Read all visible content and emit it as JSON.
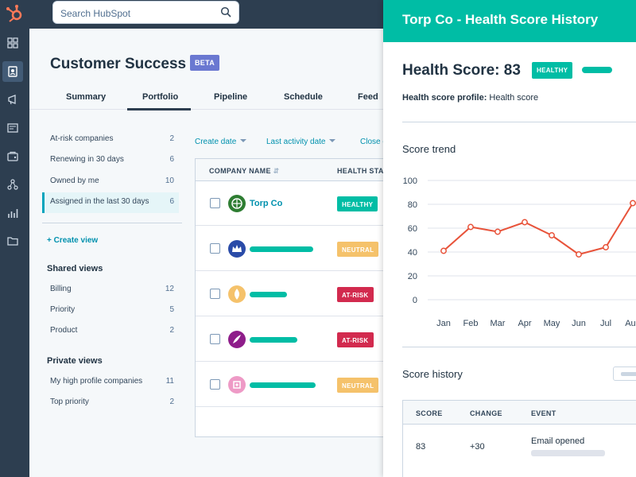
{
  "search": {
    "placeholder": "Search HubSpot"
  },
  "rail": {
    "icons": [
      "hubspot-logo",
      "dashboard-icon",
      "contacts-icon",
      "marketing-icon",
      "content-icon",
      "commerce-icon",
      "automation-icon",
      "reports-icon",
      "library-icon"
    ]
  },
  "page": {
    "title": "Customer Success",
    "badge": "BETA",
    "tabs": [
      "Summary",
      "Portfolio",
      "Pipeline",
      "Schedule",
      "Feed"
    ],
    "active_tab": "Portfolio"
  },
  "views": {
    "default": [
      {
        "label": "At-risk companies",
        "count": "2"
      },
      {
        "label": "Renewing in 30 days",
        "count": "6"
      },
      {
        "label": "Owned by me",
        "count": "10"
      },
      {
        "label": "Assigned in the last 30 days",
        "count": "6"
      }
    ],
    "create_label": "+ Create view",
    "shared_title": "Shared views",
    "shared": [
      {
        "label": "Billing",
        "count": "12"
      },
      {
        "label": "Priority",
        "count": "5"
      },
      {
        "label": "Product",
        "count": "2"
      }
    ],
    "private_title": "Private views",
    "private": [
      {
        "label": "My high profile companies",
        "count": "11"
      },
      {
        "label": "Top priority",
        "count": "2"
      }
    ]
  },
  "filters": [
    "Create date",
    "Last activity date",
    "Close d"
  ],
  "table": {
    "headers": [
      "COMPANY NAME",
      "HEALTH STAT"
    ],
    "rows": [
      {
        "name": "Torp Co",
        "status": "HEALTHY",
        "color": "#2e7d32"
      },
      {
        "name": "",
        "status": "NEUTRAL",
        "color": "#2a4ba8"
      },
      {
        "name": "",
        "status": "AT-RISK",
        "color": "#f5c26b"
      },
      {
        "name": "",
        "status": "AT-RISK",
        "color": "#8e1d8a"
      },
      {
        "name": "",
        "status": "NEUTRAL",
        "color": "#ee9ac6"
      }
    ]
  },
  "panel": {
    "title": "Torp Co - Health Score History",
    "health_score": "Health Score: 83",
    "health_badge": "HEALTHY",
    "profile_label": "Health score profile:",
    "profile_value": "Health score",
    "trend_title": "Score trend",
    "history_title": "Score history",
    "history_headers": [
      "SCORE",
      "CHANGE",
      "EVENT"
    ],
    "history_rows": [
      {
        "score": "83",
        "change": "+30",
        "event": "Email opened"
      }
    ]
  },
  "chart_data": {
    "type": "line",
    "x": [
      "Jan",
      "Feb",
      "Mar",
      "Apr",
      "May",
      "Jun",
      "Jul",
      "Aug"
    ],
    "series": [
      {
        "values": [
          41,
          61,
          57,
          65,
          54,
          38,
          44,
          81
        ]
      }
    ],
    "ylim": [
      0,
      100
    ],
    "yticks": [
      0,
      20,
      40,
      60,
      80,
      100
    ],
    "grid": true,
    "color": "#e8533a"
  }
}
